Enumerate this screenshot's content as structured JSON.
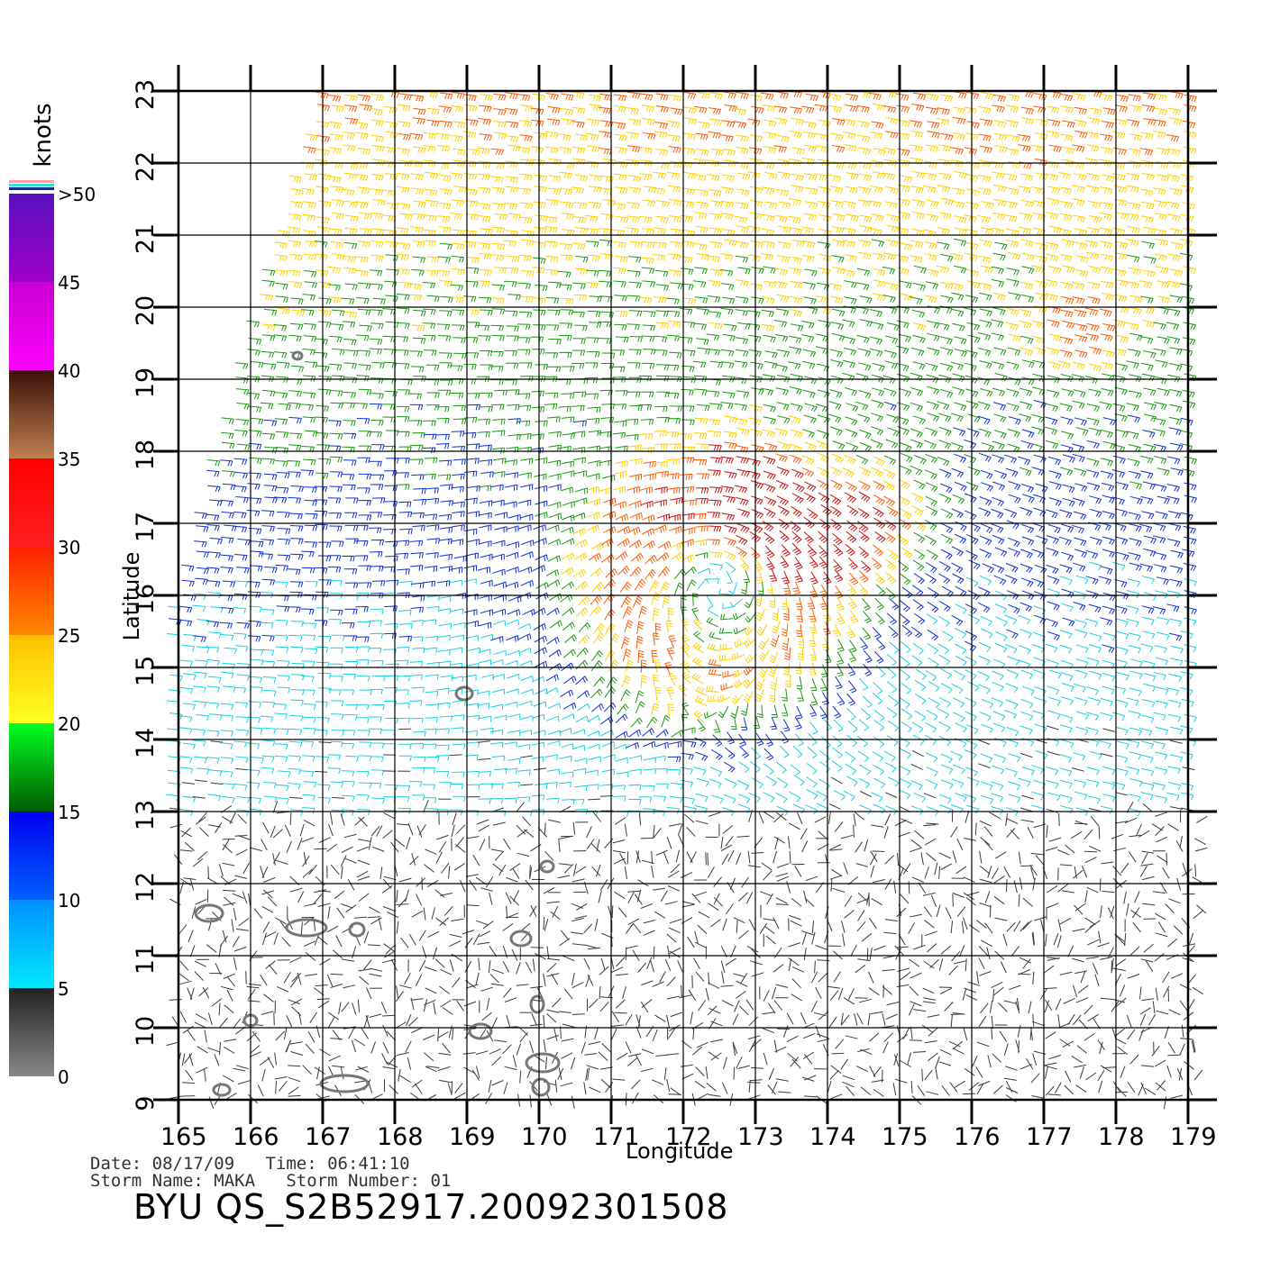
{
  "figure": {
    "x_axis_label": "Longitude",
    "y_axis_label": "Latitude",
    "x_ticks": [
      "165",
      "166",
      "167",
      "168",
      "169",
      "170",
      "171",
      "172",
      "173",
      "174",
      "175",
      "176",
      "177",
      "178",
      "179"
    ],
    "y_ticks": [
      "9",
      "10",
      "11",
      "12",
      "13",
      "14",
      "15",
      "16",
      "17",
      "18",
      "19",
      "20",
      "21",
      "22",
      "23"
    ],
    "lon_range": [
      165,
      179.4
    ],
    "lat_range": [
      9,
      23
    ]
  },
  "colorbar": {
    "unit_label": "knots",
    "labels": [
      "0",
      "5",
      "10",
      "15",
      "20",
      "25",
      "30",
      "35",
      "40",
      "45",
      ">50"
    ],
    "bands": [
      {
        "from": 0,
        "to": 5,
        "colors": [
          "#888888",
          "#222222"
        ]
      },
      {
        "from": 5,
        "to": 10,
        "colors": [
          "#00e8ff",
          "#0090ff"
        ]
      },
      {
        "from": 10,
        "to": 15,
        "colors": [
          "#0060ff",
          "#0000ee"
        ]
      },
      {
        "from": 15,
        "to": 20,
        "colors": [
          "#005a00",
          "#00ff22"
        ]
      },
      {
        "from": 20,
        "to": 25,
        "colors": [
          "#ffff20",
          "#ffc000"
        ]
      },
      {
        "from": 25,
        "to": 30,
        "colors": [
          "#ff8800",
          "#ff2000"
        ]
      },
      {
        "from": 30,
        "to": 35,
        "colors": [
          "#ff2020",
          "#ff0000"
        ]
      },
      {
        "from": 35,
        "to": 40,
        "colors": [
          "#c08050",
          "#3a1008"
        ]
      },
      {
        "from": 40,
        "to": 45,
        "colors": [
          "#ff00ff",
          "#c800d0"
        ]
      },
      {
        "from": 45,
        "to": 50,
        "colors": [
          "#a000c8",
          "#5a10c0"
        ]
      }
    ]
  },
  "wind_colors": {
    "calm": "#3a3a3a",
    "light": "#19cfe0",
    "moderate": "#1030d0",
    "fresh": "#1a9a10",
    "strong": "#ffd000",
    "gale": "#ff5a00",
    "storm": "#c81010"
  },
  "storm_center": {
    "lon": 172.5,
    "lat": 16.1
  },
  "islands_color": "#777777",
  "info": {
    "date_line": "Date: 08/17/09   Time: 06:41:10",
    "storm_line": "Storm Name: MAKA   Storm Number: 01",
    "product_title": "BYU QS_S2B52917.20092301508"
  }
}
